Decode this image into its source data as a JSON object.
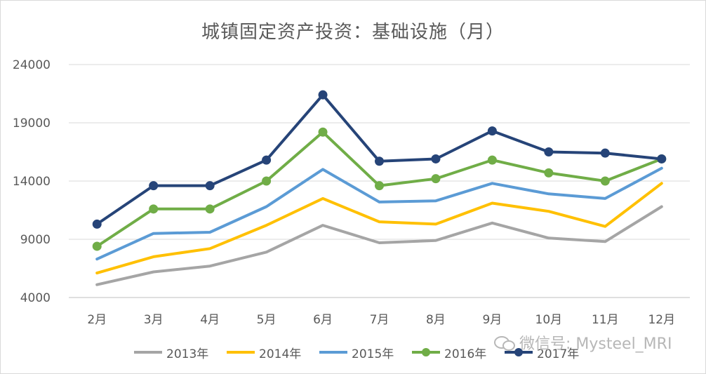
{
  "chart_data": {
    "type": "line",
    "title": "城镇固定资产投资：基础设施（月）",
    "xlabel": "",
    "ylabel": "",
    "categories": [
      "2月",
      "3月",
      "4月",
      "5月",
      "6月",
      "7月",
      "8月",
      "9月",
      "10月",
      "11月",
      "12月"
    ],
    "yticks": [
      "4000",
      "9000",
      "14000",
      "19000",
      "24000"
    ],
    "ylim": [
      4000,
      24000
    ],
    "grid": true,
    "legend_position": "bottom",
    "series": [
      {
        "name": "2013年",
        "color": "#a5a5a5",
        "markers": false,
        "values": [
          5100,
          6200,
          6700,
          7900,
          10200,
          8700,
          8900,
          10400,
          9100,
          8800,
          11800
        ]
      },
      {
        "name": "2014年",
        "color": "#ffc000",
        "markers": false,
        "values": [
          6100,
          7500,
          8200,
          10200,
          12500,
          10500,
          10300,
          12100,
          11400,
          10100,
          13800
        ]
      },
      {
        "name": "2015年",
        "color": "#5b9bd5",
        "markers": false,
        "values": [
          7300,
          9500,
          9600,
          11800,
          15000,
          12200,
          12300,
          13800,
          12900,
          12500,
          15100
        ]
      },
      {
        "name": "2016年",
        "color": "#70ad47",
        "markers": true,
        "values": [
          8400,
          11600,
          11600,
          14000,
          18200,
          13600,
          14200,
          15800,
          14700,
          14000,
          15900
        ]
      },
      {
        "name": "2017年",
        "color": "#264478",
        "markers": true,
        "values": [
          10300,
          13600,
          13600,
          15800,
          21400,
          15700,
          15900,
          18300,
          16500,
          16400,
          15900
        ]
      }
    ]
  },
  "watermark": {
    "text": "微信号: Mysteel_MRI",
    "icon": "wechat-icon"
  }
}
